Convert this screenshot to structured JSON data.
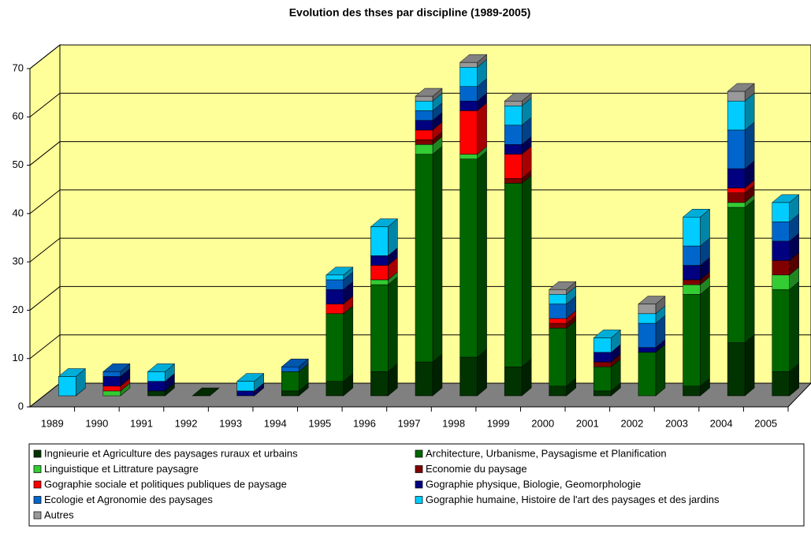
{
  "chart_data": {
    "type": "bar3d-stacked",
    "title": "Evolution des thses par discipline (1989-2005)",
    "categories": [
      "1989",
      "1990",
      "1991",
      "1992",
      "1993",
      "1994",
      "1995",
      "1996",
      "1997",
      "1998",
      "1999",
      "2000",
      "2001",
      "2002",
      "2003",
      "2004",
      "2005"
    ],
    "series": [
      {
        "name": "Ingnieurie et Agriculture des paysages ruraux et urbains",
        "color": "#003300",
        "values": [
          0,
          0,
          1,
          0,
          0,
          1,
          3,
          5,
          7,
          8,
          6,
          2,
          1,
          0,
          2,
          11,
          5
        ]
      },
      {
        "name": "Architecture, Urbanisme, Paysagisme et Planification",
        "color": "#006600",
        "values": [
          0,
          0,
          0,
          0,
          0,
          4,
          14,
          18,
          43,
          41,
          38,
          12,
          5,
          9,
          19,
          28,
          17
        ]
      },
      {
        "name": "Linguistique et Littrature paysagre",
        "color": "#33cc33",
        "values": [
          0,
          1,
          0,
          0,
          0,
          0,
          0,
          1,
          2,
          1,
          0,
          0,
          0,
          0,
          2,
          1,
          3
        ]
      },
      {
        "name": "Economie du paysage",
        "color": "#800000",
        "values": [
          0,
          0,
          0,
          0,
          0,
          0,
          0,
          0,
          1,
          0,
          1,
          1,
          1,
          0,
          1,
          2,
          3
        ]
      },
      {
        "name": "Gographie sociale et politiques publiques de paysage",
        "color": "#ff0000",
        "values": [
          0,
          1,
          0,
          0,
          0,
          0,
          2,
          3,
          2,
          9,
          5,
          1,
          0,
          0,
          0,
          1,
          0
        ]
      },
      {
        "name": "Gographie physique, Biologie, Geomorphologie",
        "color": "#000080",
        "values": [
          0,
          2,
          2,
          0,
          1,
          0,
          3,
          2,
          2,
          2,
          2,
          0,
          2,
          1,
          3,
          4,
          4
        ]
      },
      {
        "name": "Ecologie et Agronomie des paysages",
        "color": "#0066cc",
        "values": [
          0,
          1,
          0,
          0,
          0,
          1,
          2,
          0,
          2,
          3,
          4,
          3,
          0,
          5,
          4,
          8,
          4
        ]
      },
      {
        "name": "Gographie humaine, Histoire de l'art des paysages et des jardins",
        "color": "#00ccff",
        "values": [
          4,
          0,
          2,
          0,
          2,
          0,
          1,
          6,
          2,
          4,
          4,
          2,
          3,
          2,
          6,
          6,
          4
        ]
      },
      {
        "name": "Autres",
        "color": "#999999",
        "values": [
          0,
          0,
          0,
          0,
          0,
          0,
          0,
          0,
          1,
          1,
          1,
          1,
          0,
          2,
          0,
          2,
          0
        ]
      }
    ],
    "ylim": [
      0,
      70
    ],
    "yticks": [
      0,
      10,
      20,
      30,
      40,
      50,
      60,
      70
    ],
    "grid": true,
    "legend": "bottom"
  }
}
